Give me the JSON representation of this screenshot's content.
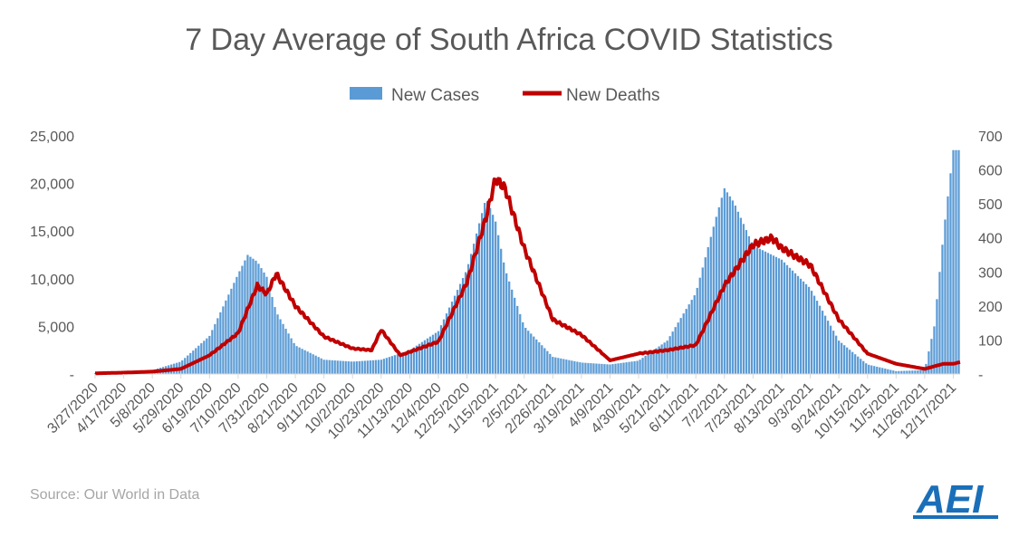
{
  "chart_data": {
    "type": "bar+line",
    "title": "7 Day Average of South Africa COVID Statistics",
    "source": "Source: Our World in Data",
    "logo_text": "AEI",
    "legend": {
      "placement": "top-center",
      "entries": [
        "New Cases",
        "New Deaths"
      ]
    },
    "colors": {
      "cases": "#5b9bd5",
      "deaths": "#c00000",
      "text": "#595959",
      "source": "#a6a6a6",
      "logo": "#1a6fb8"
    },
    "x_tick_labels": [
      "3/27/2020",
      "4/17/2020",
      "5/8/2020",
      "5/29/2020",
      "6/19/2020",
      "7/10/2020",
      "7/31/2020",
      "8/21/2020",
      "9/11/2020",
      "10/2/2020",
      "10/23/2020",
      "11/13/2020",
      "12/4/2020",
      "12/25/2020",
      "1/15/2021",
      "2/5/2021",
      "2/26/2021",
      "3/19/2021",
      "4/9/2021",
      "4/30/2021",
      "5/21/2021",
      "6/11/2021",
      "7/2/2021",
      "7/23/2021",
      "8/13/2021",
      "9/3/2021",
      "9/24/2021",
      "10/15/2021",
      "11/5/2021",
      "11/26/2021",
      "12/17/2021"
    ],
    "y_left": {
      "min": 0,
      "max": 25000,
      "ticks": [
        "-",
        "5,000",
        "10,000",
        "15,000",
        "20,000",
        "25,000"
      ]
    },
    "y_right": {
      "min": 0,
      "max": 700,
      "ticks": [
        "-",
        "100",
        "200",
        "300",
        "400",
        "500",
        "600",
        "700"
      ]
    },
    "x_date_range": [
      "3/27/2020",
      "12/22/2021"
    ],
    "series": [
      {
        "name": "New Cases",
        "axis": "left",
        "type": "bar",
        "points": [
          [
            "3/27/2020",
            80
          ],
          [
            "4/17/2020",
            150
          ],
          [
            "5/8/2020",
            400
          ],
          [
            "5/29/2020",
            1300
          ],
          [
            "6/19/2020",
            4000
          ],
          [
            "7/10/2020",
            10500
          ],
          [
            "7/17/2020",
            12500
          ],
          [
            "7/24/2020",
            11800
          ],
          [
            "7/31/2020",
            10200
          ],
          [
            "8/7/2020",
            6500
          ],
          [
            "8/21/2020",
            3000
          ],
          [
            "9/11/2020",
            1500
          ],
          [
            "10/2/2020",
            1300
          ],
          [
            "10/23/2020",
            1500
          ],
          [
            "11/13/2020",
            2500
          ],
          [
            "12/4/2020",
            4500
          ],
          [
            "12/25/2020",
            11000
          ],
          [
            "1/8/2021",
            18500
          ],
          [
            "1/15/2021",
            16000
          ],
          [
            "1/22/2021",
            11000
          ],
          [
            "2/5/2021",
            5000
          ],
          [
            "2/26/2021",
            1800
          ],
          [
            "3/19/2021",
            1200
          ],
          [
            "4/9/2021",
            1000
          ],
          [
            "4/30/2021",
            1400
          ],
          [
            "5/21/2021",
            3500
          ],
          [
            "6/11/2021",
            8500
          ],
          [
            "6/25/2021",
            16000
          ],
          [
            "7/2/2021",
            19500
          ],
          [
            "7/9/2021",
            18000
          ],
          [
            "7/23/2021",
            13500
          ],
          [
            "8/13/2021",
            12000
          ],
          [
            "9/3/2021",
            9000
          ],
          [
            "9/24/2021",
            3500
          ],
          [
            "10/15/2021",
            1000
          ],
          [
            "11/5/2021",
            300
          ],
          [
            "11/26/2021",
            400
          ],
          [
            "12/3/2021",
            5000
          ],
          [
            "12/10/2021",
            15000
          ],
          [
            "12/17/2021",
            23500
          ]
        ]
      },
      {
        "name": "New Deaths",
        "axis": "right",
        "type": "line",
        "points": [
          [
            "3/27/2020",
            2
          ],
          [
            "4/17/2020",
            4
          ],
          [
            "5/8/2020",
            7
          ],
          [
            "5/29/2020",
            15
          ],
          [
            "6/19/2020",
            55
          ],
          [
            "7/10/2020",
            120
          ],
          [
            "7/24/2020",
            260
          ],
          [
            "7/31/2020",
            235
          ],
          [
            "8/7/2020",
            295
          ],
          [
            "8/21/2020",
            200
          ],
          [
            "9/11/2020",
            110
          ],
          [
            "10/2/2020",
            75
          ],
          [
            "10/16/2020",
            70
          ],
          [
            "10/23/2020",
            130
          ],
          [
            "11/6/2020",
            55
          ],
          [
            "11/13/2020",
            65
          ],
          [
            "12/4/2020",
            95
          ],
          [
            "12/25/2020",
            270
          ],
          [
            "1/8/2021",
            460
          ],
          [
            "1/15/2021",
            575
          ],
          [
            "1/22/2021",
            545
          ],
          [
            "2/5/2021",
            370
          ],
          [
            "2/26/2021",
            160
          ],
          [
            "3/19/2021",
            115
          ],
          [
            "4/9/2021",
            40
          ],
          [
            "4/30/2021",
            60
          ],
          [
            "5/21/2021",
            70
          ],
          [
            "6/11/2021",
            85
          ],
          [
            "7/2/2021",
            260
          ],
          [
            "7/23/2021",
            380
          ],
          [
            "8/6/2021",
            400
          ],
          [
            "8/13/2021",
            370
          ],
          [
            "9/3/2021",
            320
          ],
          [
            "9/24/2021",
            160
          ],
          [
            "10/15/2021",
            60
          ],
          [
            "11/5/2021",
            30
          ],
          [
            "11/26/2021",
            15
          ],
          [
            "12/10/2021",
            30
          ],
          [
            "12/17/2021",
            30
          ],
          [
            "12/22/2021",
            35
          ]
        ]
      }
    ]
  }
}
